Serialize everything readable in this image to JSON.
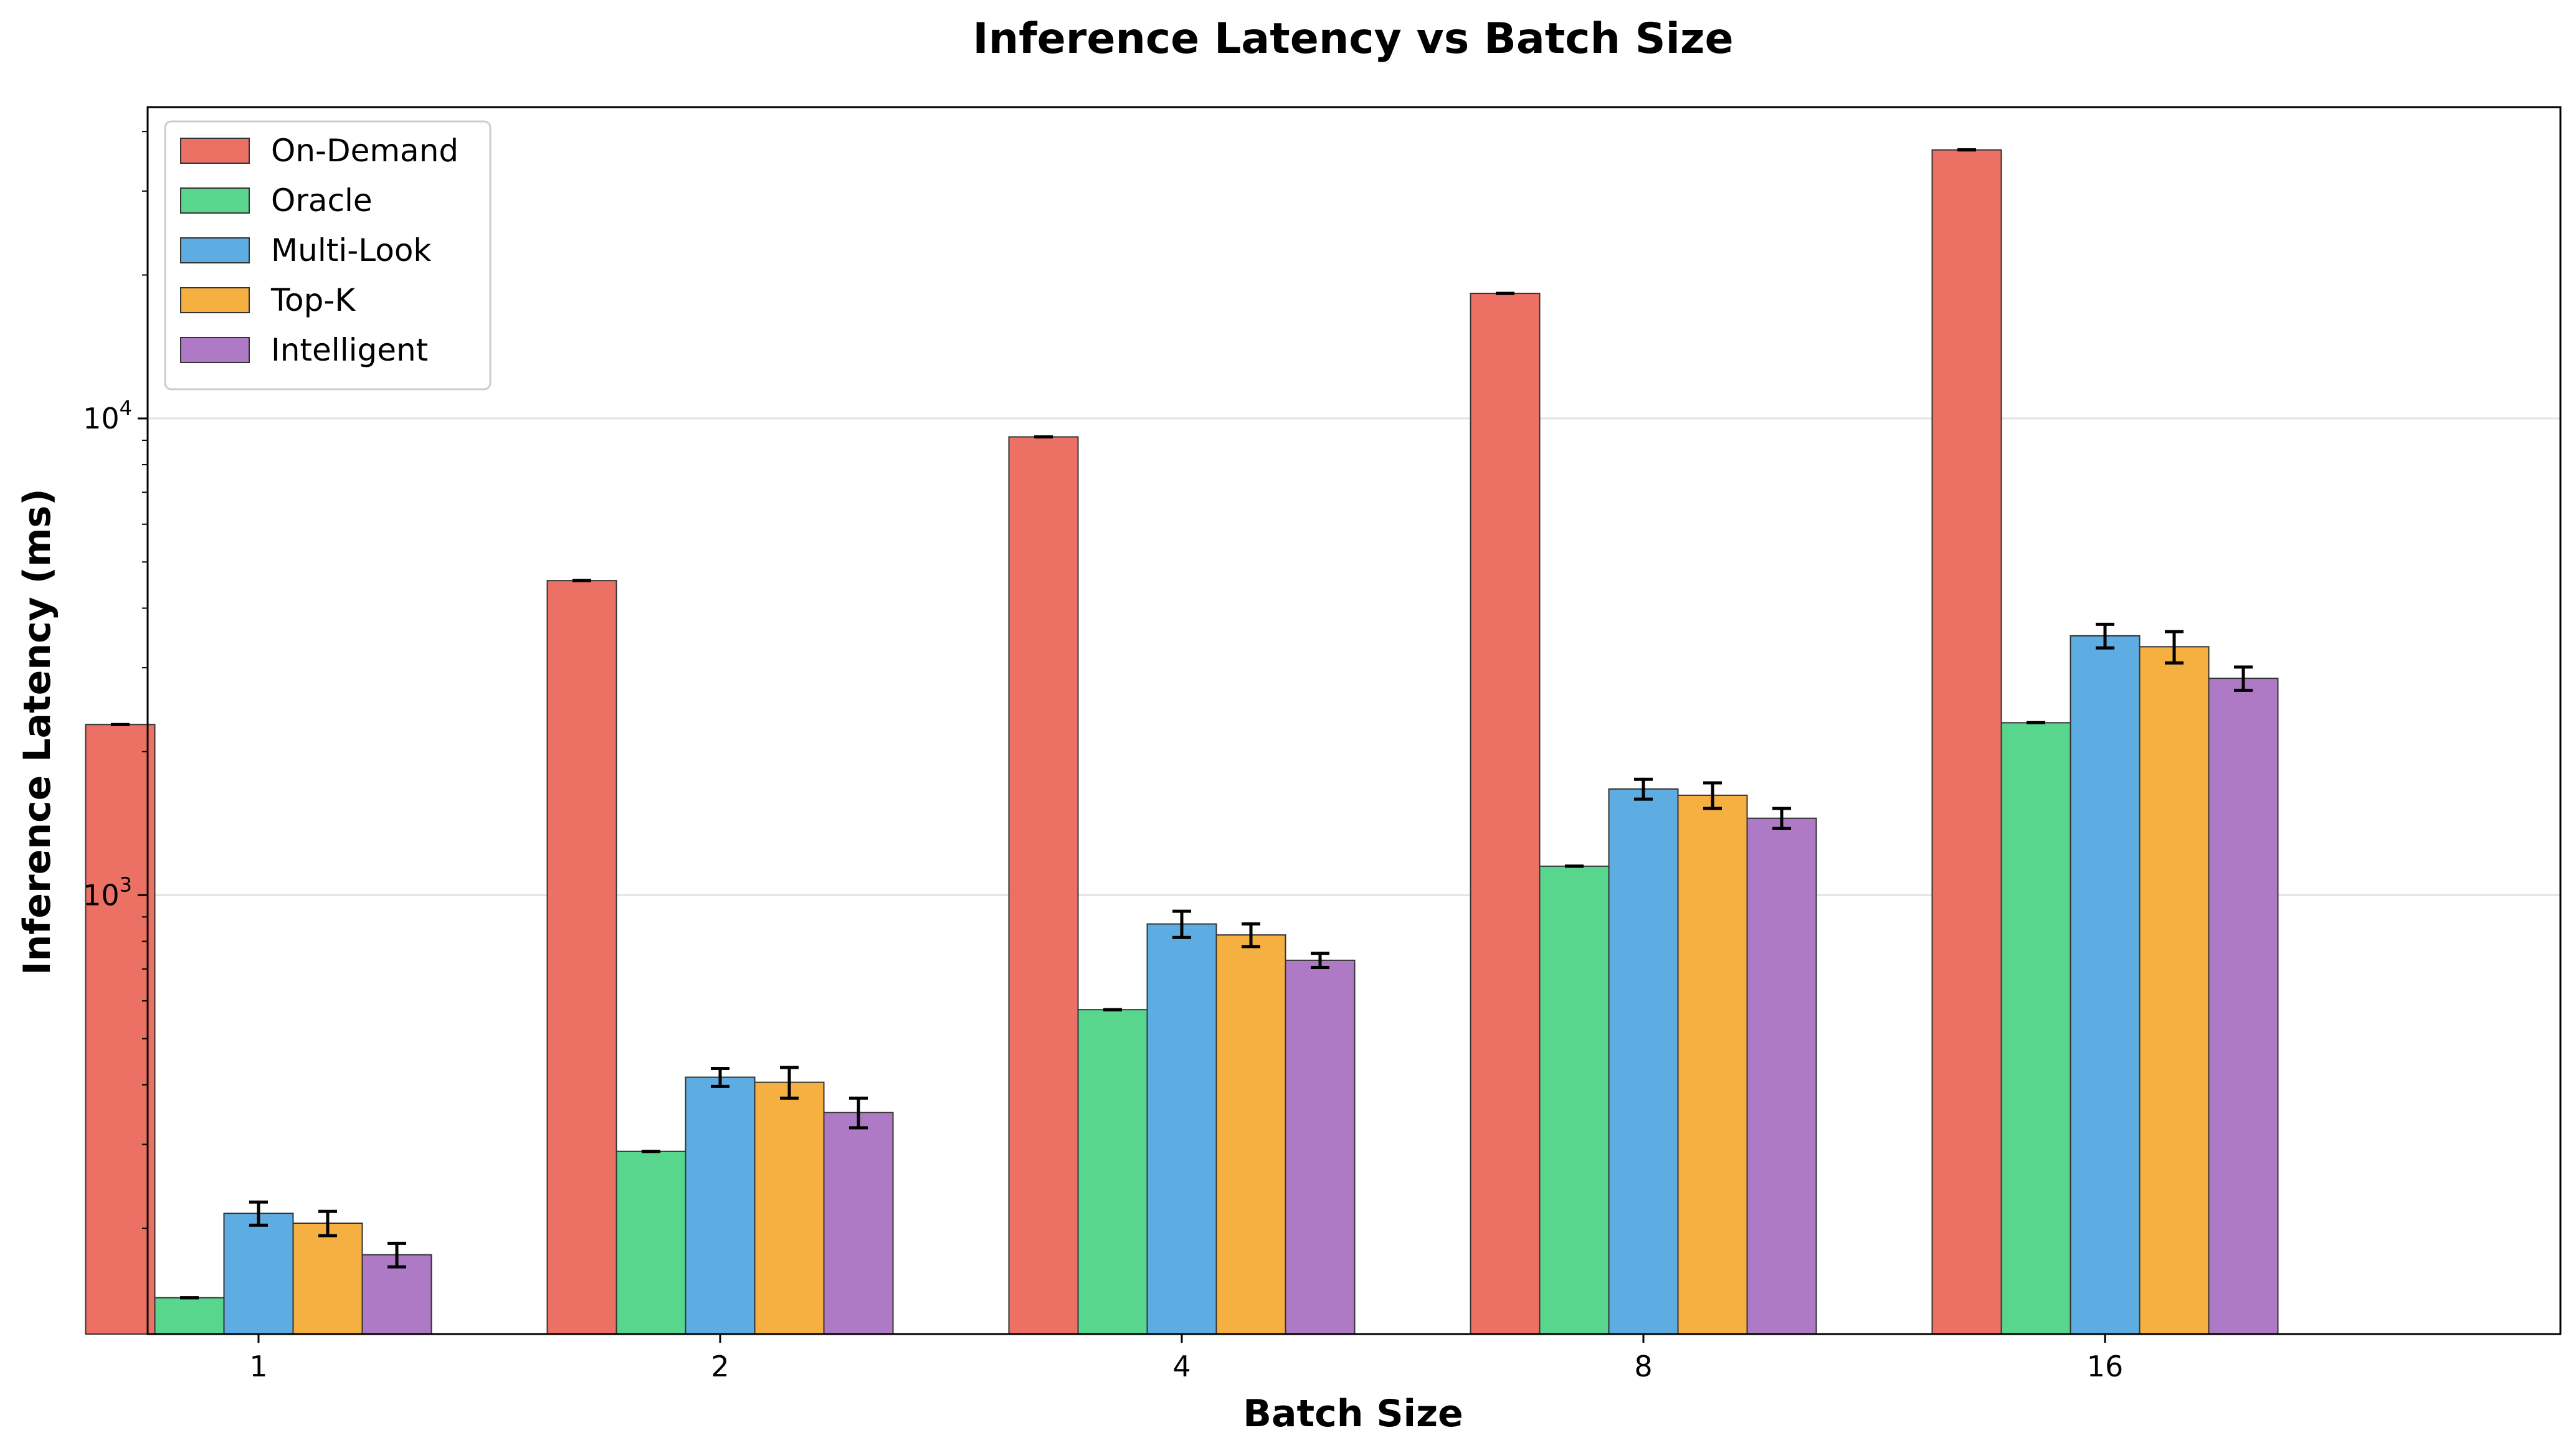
{
  "chart_data": {
    "type": "bar",
    "title": "Inference Latency vs Batch Size",
    "xlabel": "Batch Size",
    "ylabel": "Inference Latency (ms)",
    "yscale": "log",
    "ylim": [
      120,
      45000
    ],
    "grid": "horizontal-major",
    "legend_position": "top-left",
    "categories": [
      "1",
      "2",
      "4",
      "8",
      "16"
    ],
    "yticks": [
      {
        "value": 1000,
        "base": "10",
        "exp": "3"
      },
      {
        "value": 10000,
        "base": "10",
        "exp": "4"
      }
    ],
    "series": [
      {
        "name": "On-Demand",
        "color": "#ec7063",
        "values": [
          2280,
          4570,
          9150,
          18300,
          36600
        ],
        "errors": [
          0,
          0,
          0,
          0,
          0
        ]
      },
      {
        "name": "Oracle",
        "color": "#58d68d",
        "values": [
          143,
          290,
          575,
          1150,
          2300
        ],
        "errors": [
          0,
          0,
          0,
          0,
          0
        ]
      },
      {
        "name": "Multi-Look",
        "color": "#5dade2",
        "values": [
          215,
          415,
          870,
          1670,
          3500
        ],
        "errors": [
          12,
          18,
          55,
          80,
          200
        ]
      },
      {
        "name": "Top-K",
        "color": "#f5b041",
        "values": [
          205,
          405,
          825,
          1620,
          3320
        ],
        "errors": [
          12,
          30,
          45,
          100,
          250
        ]
      },
      {
        "name": "Intelligent",
        "color": "#af7ac5",
        "values": [
          176,
          350,
          730,
          1450,
          2850
        ],
        "errors": [
          10,
          25,
          25,
          70,
          160
        ]
      }
    ]
  }
}
